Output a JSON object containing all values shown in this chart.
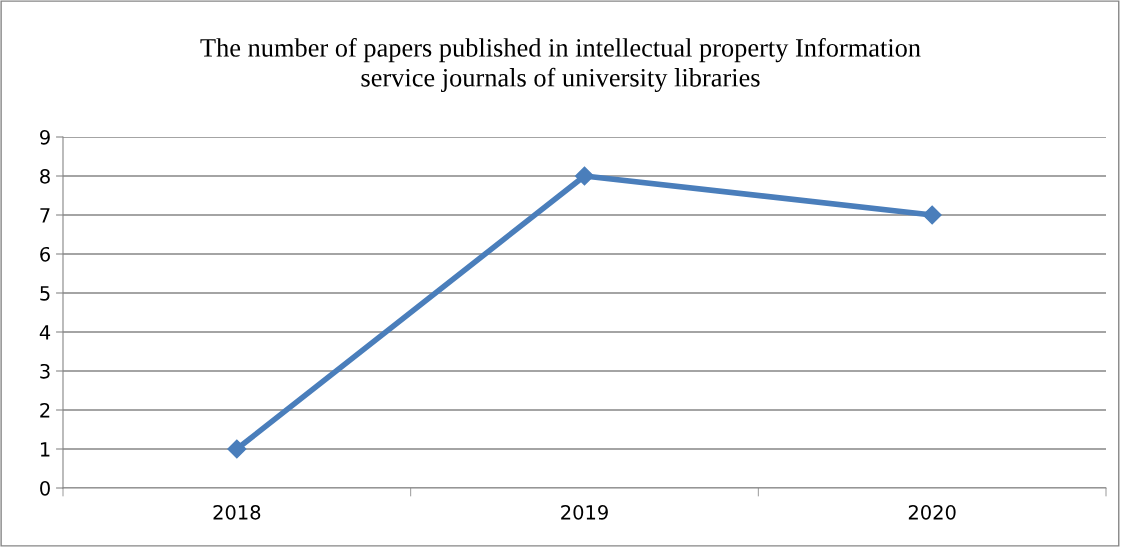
{
  "chart_data": {
    "type": "line",
    "title": "The number of papers published in intellectual property Information\nservice journals of university libraries",
    "categories": [
      "2018",
      "2019",
      "2020"
    ],
    "series": [
      {
        "color": "#4a7ebb",
        "values": [
          1,
          8,
          7
        ]
      }
    ],
    "ylim": [
      0,
      9
    ],
    "yticks": [
      0,
      1,
      2,
      3,
      4,
      5,
      6,
      7,
      8,
      9
    ],
    "grid": "y",
    "marker": "diamond",
    "line_style": "solid"
  }
}
